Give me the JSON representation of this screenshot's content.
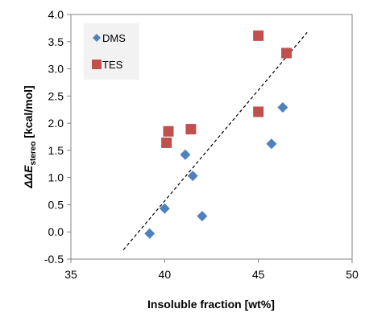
{
  "chart_data": {
    "type": "scatter",
    "xlabel": "Insoluble fraction [wt%]",
    "ylabel": {
      "prefix": "ΔΔ",
      "symbol": "E",
      "subscript": "stereo",
      "unit": " [kcal/mol]"
    },
    "xlim": [
      35,
      50
    ],
    "ylim": [
      -0.5,
      4.0
    ],
    "xticks": [
      35,
      40,
      45,
      50
    ],
    "yticks": [
      -0.5,
      0.0,
      0.5,
      1.0,
      1.5,
      2.0,
      2.5,
      3.0,
      3.5,
      4.0
    ],
    "ytick_format": "0.0",
    "grid": false,
    "legend_position": "top-left",
    "series": [
      {
        "name": "DMS",
        "marker": "diamond",
        "color": "#4F81BD",
        "points": [
          {
            "x": 39.2,
            "y": -0.03
          },
          {
            "x": 40.0,
            "y": 0.43
          },
          {
            "x": 42.0,
            "y": 0.29
          },
          {
            "x": 41.5,
            "y": 1.03
          },
          {
            "x": 41.1,
            "y": 1.42
          },
          {
            "x": 45.7,
            "y": 1.62
          },
          {
            "x": 46.3,
            "y": 2.29
          }
        ]
      },
      {
        "name": "TES",
        "marker": "square",
        "color": "#C0504D",
        "points": [
          {
            "x": 40.1,
            "y": 1.64
          },
          {
            "x": 40.2,
            "y": 1.85
          },
          {
            "x": 41.4,
            "y": 1.89
          },
          {
            "x": 45.0,
            "y": 2.21
          },
          {
            "x": 45.0,
            "y": 3.61
          },
          {
            "x": 46.5,
            "y": 3.29
          }
        ]
      }
    ],
    "trendline": {
      "style": "dashed",
      "color": "#000000",
      "from": {
        "x": 37.8,
        "y": -0.33
      },
      "to": {
        "x": 47.6,
        "y": 3.67
      }
    }
  }
}
